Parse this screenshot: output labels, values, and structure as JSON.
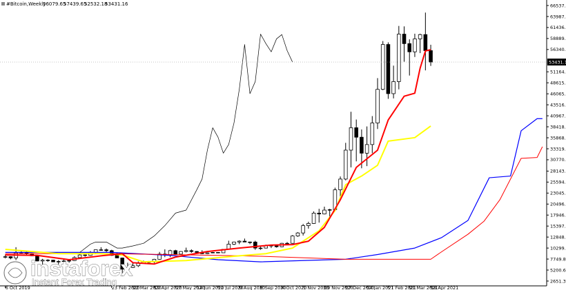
{
  "chart_data": {
    "type": "candlestick",
    "title": "#Bitcoin,Weekly",
    "open": [
      8150,
      8300,
      8000,
      9200,
      9300,
      9000,
      8500,
      7300,
      7500,
      7500,
      7100,
      7200,
      7300,
      7400,
      8100,
      8700,
      8600,
      9300,
      9900,
      9900,
      9700,
      8600,
      8000,
      5400,
      5800,
      6200,
      6800,
      7100,
      7100,
      7700,
      8900,
      8700,
      9700,
      8900,
      9500,
      9700,
      9500,
      9300,
      9000,
      9200,
      9300,
      9200,
      10000,
      11200,
      11700,
      11900,
      11700,
      11700,
      10300,
      10300,
      10900,
      10800,
      10600,
      11400,
      11400,
      13100,
      13800,
      15500,
      16000,
      18400,
      18200,
      19100,
      19200,
      23800,
      26300,
      33000,
      38200,
      36000,
      32300,
      34300,
      39300,
      47100,
      57500,
      46100,
      48900,
      59900,
      57700,
      55800,
      58800,
      59800,
      56079.65
    ],
    "high": [
      8800,
      8400,
      10500,
      9800,
      9500,
      9100,
      8500,
      7800,
      7700,
      7600,
      7500,
      7600,
      7500,
      8400,
      9000,
      8800,
      9600,
      9900,
      10500,
      10200,
      9900,
      9200,
      8100,
      6900,
      6900,
      7200,
      7400,
      7300,
      7800,
      9400,
      10000,
      9900,
      9900,
      9600,
      10400,
      10000,
      9600,
      9800,
      9300,
      9400,
      9300,
      10000,
      12000,
      11800,
      12100,
      12500,
      11800,
      12000,
      10600,
      11100,
      10900,
      10900,
      11500,
      11700,
      13300,
      14000,
      15900,
      16400,
      18800,
      19400,
      19900,
      19400,
      24300,
      26900,
      34700,
      41900,
      40100,
      37800,
      38500,
      40900,
      49700,
      58300,
      58000,
      52600,
      61800,
      61700,
      58700,
      60000,
      60000,
      64900,
      57439.65
    ],
    "low": [
      7900,
      7700,
      7300,
      9000,
      8700,
      8400,
      7200,
      6500,
      7100,
      7100,
      6500,
      7100,
      6900,
      7300,
      8000,
      8300,
      8500,
      9100,
      9700,
      9300,
      8500,
      8000,
      3800,
      4600,
      5700,
      5900,
      6700,
      6600,
      6800,
      7600,
      8200,
      8200,
      8800,
      8700,
      9300,
      9200,
      9200,
      8900,
      8900,
      9100,
      9100,
      9200,
      10000,
      11000,
      11200,
      11700,
      11200,
      9900,
      9900,
      10200,
      10300,
      10400,
      10500,
      11200,
      11300,
      12900,
      13200,
      14800,
      15900,
      16200,
      18100,
      17600,
      19000,
      21800,
      26000,
      29000,
      30400,
      28800,
      29300,
      32300,
      37900,
      46900,
      44900,
      45000,
      47100,
      53500,
      50300,
      54600,
      55500,
      51500,
      52532.18
    ],
    "close": [
      8300,
      8000,
      9200,
      9300,
      9000,
      8500,
      7300,
      7500,
      7500,
      7100,
      7200,
      7300,
      7400,
      8100,
      8700,
      8600,
      9300,
      9900,
      9900,
      9700,
      8600,
      8000,
      5400,
      5800,
      6200,
      6800,
      7100,
      7100,
      7700,
      8900,
      8700,
      9700,
      8900,
      9500,
      9700,
      9500,
      9300,
      9000,
      9200,
      9300,
      9200,
      10000,
      11200,
      11700,
      11900,
      11700,
      11700,
      10300,
      10300,
      10900,
      10800,
      10600,
      11400,
      11400,
      13100,
      13800,
      15500,
      16000,
      18400,
      18200,
      19100,
      19200,
      23800,
      26300,
      33000,
      38200,
      36000,
      32300,
      34300,
      39300,
      47100,
      57500,
      46100,
      48900,
      59900,
      57700,
      55800,
      58800,
      59800,
      56079.65,
      53431.16
    ],
    "up_color": "#ffffff",
    "down_color": "#000000",
    "lines": [
      {
        "color": "#0000ff",
        "width": 1.2,
        "x": [
          0,
          20,
          31,
          40,
          48,
          64,
          70,
          77,
          82,
          87,
          91,
          95,
          97,
          100,
          101
        ],
        "values": [
          9300,
          9300,
          8600,
          7600,
          7100,
          7700,
          8800,
          10300,
          12700,
          16700,
          26600,
          27000,
          37500,
          40300,
          40300
        ]
      },
      {
        "color": "#ff0000",
        "width": 1,
        "x": [
          0,
          20,
          40,
          48,
          64,
          70,
          80,
          82,
          87,
          90,
          93,
          97,
          100,
          101
        ],
        "values": [
          9000,
          9000,
          8600,
          8400,
          7700,
          7700,
          7700,
          9400,
          13500,
          16500,
          21500,
          31100,
          31300,
          33800
        ]
      },
      {
        "color": "#000000",
        "width": 0.7,
        "x": [
          14,
          16,
          17,
          19,
          21,
          22,
          24,
          26,
          28,
          30,
          32,
          34,
          36,
          37,
          38,
          39,
          40,
          41,
          42,
          43,
          44,
          45,
          46,
          47,
          48,
          49,
          50,
          51,
          52,
          53,
          54
        ],
        "values": [
          9300,
          11200,
          11700,
          11700,
          10300,
          10300,
          10800,
          11400,
          13100,
          15500,
          18400,
          19100,
          23800,
          26300,
          33000,
          38200,
          36000,
          32300,
          34300,
          39300,
          47100,
          57500,
          46100,
          48900,
          59900,
          57700,
          55800,
          58800,
          59800,
          56079.65,
          53431.16
        ]
      },
      {
        "color": "#ffff00",
        "width": 2,
        "x": [
          0,
          10,
          18,
          22,
          26,
          34,
          43,
          49,
          54,
          59,
          62,
          64,
          67,
          70,
          72,
          77,
          80
        ],
        "values": [
          10000,
          9000,
          9000,
          8700,
          7100,
          7400,
          8400,
          9000,
          10300,
          14300,
          19000,
          25000,
          27000,
          29500,
          35100,
          35900,
          38600
        ]
      },
      {
        "color": "#ff0000",
        "width": 2,
        "x": [
          0,
          6,
          12,
          18,
          22,
          24,
          28,
          32,
          38,
          44,
          50,
          54,
          57,
          60,
          63,
          66,
          70,
          72,
          75,
          77,
          78,
          79,
          80
        ],
        "values": [
          8700,
          8600,
          7600,
          8500,
          9000,
          6900,
          6600,
          8200,
          9500,
          10300,
          11000,
          11100,
          11900,
          15100,
          21500,
          29000,
          33000,
          40000,
          45500,
          46200,
          52000,
          56000,
          56300
        ]
      }
    ],
    "xlim": [
      -1,
      101.8
    ],
    "ylim": [
      1533,
      67815
    ],
    "yticks": [
      {
        "value": 66537.1,
        "label": "66537.10"
      },
      {
        "value": 63987.65,
        "label": "63987.65"
      },
      {
        "value": 61436.1,
        "label": "61436.10"
      },
      {
        "value": 58889.35,
        "label": "58889.35"
      },
      {
        "value": 56340.1,
        "label": "56340.10"
      },
      {
        "value": 51164.55,
        "label": "51164.55"
      },
      {
        "value": 48615.1,
        "label": "48615.10"
      },
      {
        "value": 46065.65,
        "label": "46065.65"
      },
      {
        "value": 43516.6,
        "label": "43516.60"
      },
      {
        "value": 40967.35,
        "label": "40967.35"
      },
      {
        "value": 38418.1,
        "label": "38418.10"
      },
      {
        "value": 35868.65,
        "label": "35868.65"
      },
      {
        "value": 33319.2,
        "label": "33319.20"
      },
      {
        "value": 30770.35,
        "label": "30770.35"
      },
      {
        "value": 28143.65,
        "label": "28143.65"
      },
      {
        "value": 25594.5,
        "label": "25594.50"
      },
      {
        "value": 23045.35,
        "label": "23045.35"
      },
      {
        "value": 20496.1,
        "label": "20496.10"
      },
      {
        "value": 17946.9,
        "label": "17946.90"
      },
      {
        "value": 15397.65,
        "label": "15397.65"
      },
      {
        "value": 12848.35,
        "label": "12848.35"
      },
      {
        "value": 10299.1,
        "label": "10299.10"
      },
      {
        "value": 7749.89,
        "label": "7749.89"
      },
      {
        "value": 5200.6,
        "label": "5200.60"
      },
      {
        "value": 2651.35,
        "label": "2651.35"
      }
    ],
    "xticks": [
      {
        "value": 0,
        "label": "6 Oct 2019"
      },
      {
        "value": 20,
        "label": "23 Feb 2020"
      },
      {
        "value": 24,
        "label": "22 Mar 2020"
      },
      {
        "value": 28,
        "label": "19 Apr 2020"
      },
      {
        "value": 32,
        "label": "17 May 2020"
      },
      {
        "value": 36,
        "label": "14 Jun 2020"
      },
      {
        "value": 40,
        "label": "12 Jul 2020"
      },
      {
        "value": 44,
        "label": "9 Aug 2020"
      },
      {
        "value": 48,
        "label": "6 Sep 2020"
      },
      {
        "value": 52,
        "label": "4 Oct 2020"
      },
      {
        "value": 56,
        "label": "1 Nov 2020"
      },
      {
        "value": 60,
        "label": "29 Nov 2020"
      },
      {
        "value": 64,
        "label": "27 Dec 2020"
      },
      {
        "value": 68,
        "label": "24 Jan 2021"
      },
      {
        "value": 72,
        "label": "21 Feb 2021"
      },
      {
        "value": 76,
        "label": "21 Mar 2021"
      },
      {
        "value": 80,
        "label": "18 Apr 2021"
      }
    ]
  },
  "watermark": {
    "brand": "instaforex",
    "tagline": "Instant Forex Trading"
  }
}
